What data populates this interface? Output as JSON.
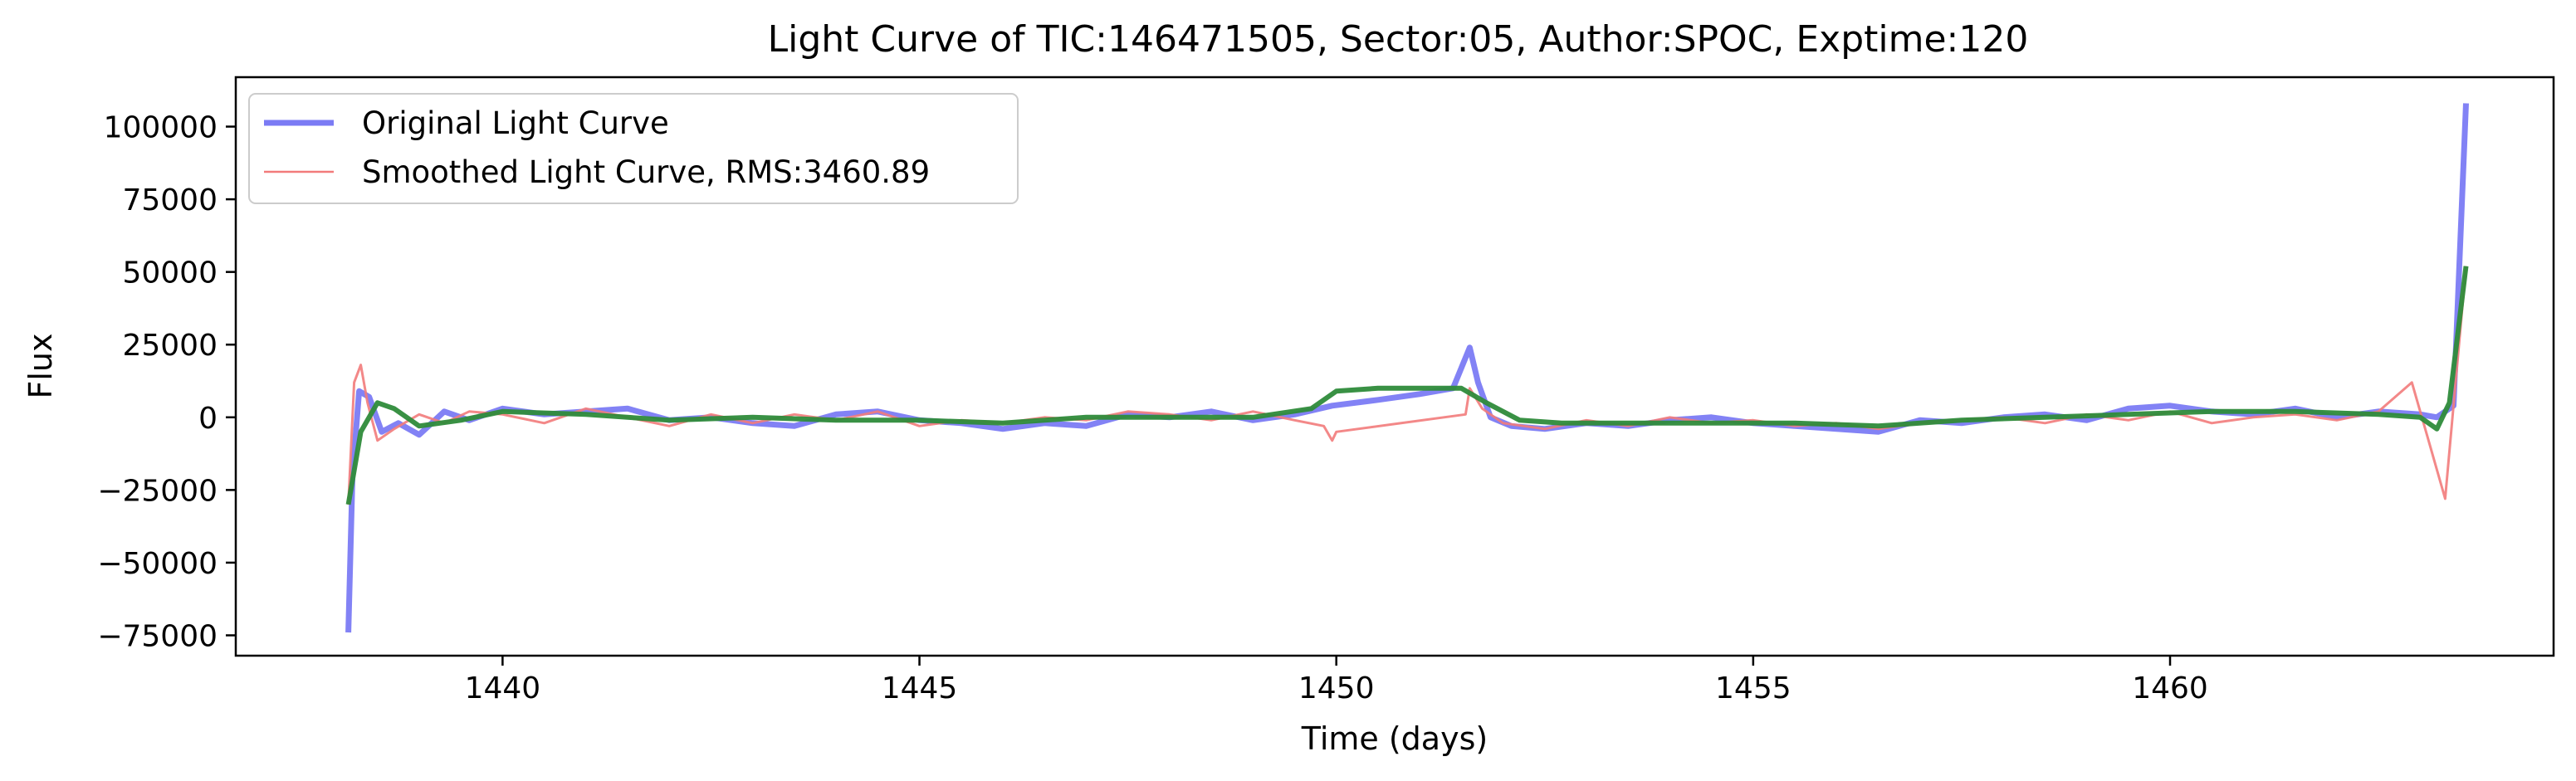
{
  "chart_data": {
    "type": "line",
    "title": "Light Curve of TIC:146471505, Sector:05, Author:SPOC, Exptime:120",
    "xlabel": "Time (days)",
    "ylabel": "Flux",
    "xlim": [
      1436.8,
      1464.6
    ],
    "ylim": [
      -82000,
      117000
    ],
    "xticks": [
      1440,
      1445,
      1450,
      1455,
      1460
    ],
    "xtick_labels": [
      "1440",
      "1445",
      "1450",
      "1455",
      "1460"
    ],
    "yticks": [
      -75000,
      -50000,
      -25000,
      0,
      25000,
      50000,
      75000,
      100000
    ],
    "ytick_labels": [
      "−75000",
      "−50000",
      "−25000",
      "0",
      "25000",
      "50000",
      "75000",
      "100000"
    ],
    "grid": false,
    "legend": {
      "placement": "upper-left",
      "entries": [
        {
          "label": "Original Light Curve",
          "color": "#7b7bf4"
        },
        {
          "label": "Smoothed Light Curve, RMS:3460.89",
          "color": "#f27b7b"
        }
      ]
    },
    "series": [
      {
        "name": "Original Light Curve",
        "color": "#7b7bf4",
        "x": [
          1438.15,
          1438.2,
          1438.28,
          1438.4,
          1438.55,
          1438.75,
          1439.0,
          1439.3,
          1439.6,
          1440.0,
          1440.5,
          1441.0,
          1441.5,
          1442.0,
          1442.5,
          1443.0,
          1443.5,
          1444.0,
          1444.5,
          1445.0,
          1445.5,
          1446.0,
          1446.5,
          1447.0,
          1447.5,
          1448.0,
          1448.5,
          1449.0,
          1449.5,
          1449.95,
          1450.5,
          1451.0,
          1451.4,
          1451.6,
          1451.7,
          1451.85,
          1452.1,
          1452.5,
          1453.0,
          1453.5,
          1454.0,
          1454.5,
          1455.0,
          1455.5,
          1456.0,
          1456.5,
          1457.0,
          1457.5,
          1458.0,
          1458.5,
          1459.0,
          1459.5,
          1460.0,
          1460.5,
          1461.0,
          1461.5,
          1462.0,
          1462.5,
          1463.0,
          1463.2,
          1463.4,
          1463.55
        ],
        "y": [
          -74000,
          -20000,
          9000,
          7000,
          -5000,
          -2000,
          -6000,
          2000,
          -1000,
          3000,
          1000,
          2000,
          3000,
          -1000,
          0,
          -2000,
          -3000,
          1000,
          2000,
          -1000,
          -2000,
          -4000,
          -2000,
          -3000,
          1000,
          0,
          2000,
          -1000,
          1000,
          4000,
          6000,
          8000,
          10000,
          24000,
          12000,
          0,
          -3000,
          -4000,
          -2000,
          -3000,
          -1000,
          0,
          -2000,
          -3000,
          -4000,
          -5000,
          -1000,
          -2000,
          0,
          1000,
          -1000,
          3000,
          4000,
          2000,
          1000,
          3000,
          0,
          2000,
          1000,
          0,
          4000,
          108000
        ]
      },
      {
        "name": "",
        "color": "#f27b7b",
        "x": [
          1438.15,
          1438.22,
          1438.3,
          1438.38,
          1438.5,
          1438.7,
          1439.0,
          1439.3,
          1439.6,
          1440.0,
          1440.5,
          1441.0,
          1441.5,
          1442.0,
          1442.5,
          1443.0,
          1443.5,
          1444.0,
          1444.5,
          1445.0,
          1445.5,
          1446.0,
          1446.5,
          1447.0,
          1447.5,
          1448.0,
          1448.5,
          1449.0,
          1449.5,
          1449.85,
          1449.95,
          1450.0,
          1451.55,
          1451.6,
          1451.75,
          1452.0,
          1452.5,
          1453.0,
          1453.5,
          1454.0,
          1454.5,
          1455.0,
          1455.5,
          1456.0,
          1456.5,
          1457.0,
          1457.5,
          1458.0,
          1458.5,
          1459.0,
          1459.5,
          1460.0,
          1460.5,
          1461.0,
          1461.5,
          1462.0,
          1462.5,
          1462.9,
          1463.1,
          1463.3,
          1463.45,
          1463.55
        ],
        "y": [
          -30000,
          12000,
          18000,
          5000,
          -8000,
          -4000,
          1000,
          -2000,
          2000,
          1000,
          -2000,
          3000,
          0,
          -3000,
          1000,
          -2000,
          1000,
          -1000,
          2000,
          -3000,
          -1000,
          -2000,
          0,
          -1000,
          2000,
          1000,
          -1000,
          2000,
          -1000,
          -3000,
          -8000,
          -5000,
          1000,
          10000,
          3000,
          -2000,
          -4000,
          -1000,
          -3000,
          0,
          -2000,
          -1000,
          -3000,
          -2000,
          -4000,
          -2000,
          -1000,
          0,
          -2000,
          1000,
          -1000,
          2000,
          -2000,
          0,
          1000,
          -1000,
          2000,
          12000,
          -8000,
          -28000,
          20000,
          52000
        ]
      },
      {
        "name": "",
        "color": "#2e8b3a",
        "x": [
          1438.15,
          1438.3,
          1438.5,
          1438.7,
          1439.0,
          1439.5,
          1440.0,
          1441.0,
          1442.0,
          1443.0,
          1444.0,
          1445.0,
          1446.0,
          1447.0,
          1448.0,
          1449.0,
          1449.7,
          1450.0,
          1450.5,
          1451.0,
          1451.5,
          1451.8,
          1452.2,
          1452.7,
          1453.5,
          1454.5,
          1455.5,
          1456.5,
          1457.5,
          1458.5,
          1459.5,
          1460.5,
          1461.5,
          1462.5,
          1463.0,
          1463.2,
          1463.35,
          1463.55
        ],
        "y": [
          -30000,
          -5000,
          5000,
          3000,
          -3000,
          -1000,
          2000,
          1000,
          -1000,
          0,
          -1000,
          -1000,
          -2000,
          0,
          0,
          0,
          3000,
          9000,
          10000,
          10000,
          10000,
          5000,
          -1000,
          -2000,
          -2000,
          -2000,
          -2000,
          -3000,
          -1000,
          0,
          1000,
          2000,
          2000,
          1000,
          0,
          -4000,
          5000,
          52000
        ]
      }
    ]
  }
}
